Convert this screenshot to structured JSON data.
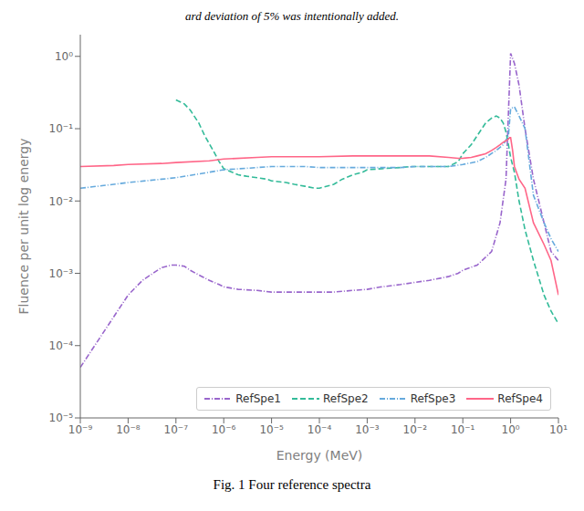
{
  "chart_data": {
    "type": "line",
    "title": "Fig. 1  Four reference spectra",
    "annotations": [
      "ard deviation of 5% was intentionally added."
    ],
    "x_label": "Energy (MeV)",
    "y_label": "Fluence per unit log energy",
    "log": true,
    "grid": false,
    "legend": "lower right",
    "xlim": [
      1e-09,
      10
    ],
    "ylim": [
      1e-05,
      1.9952623149688795
    ],
    "xticks": [
      {
        "value": 1e-09,
        "label": "10⁻⁹"
      },
      {
        "value": 1e-08,
        "label": "10⁻⁸"
      },
      {
        "value": 1e-07,
        "label": "10⁻⁷"
      },
      {
        "value": 1e-06,
        "label": "10⁻⁶"
      },
      {
        "value": 1e-05,
        "label": "10⁻⁵"
      },
      {
        "value": 0.0001,
        "label": "10⁻⁴"
      },
      {
        "value": 0.001,
        "label": "10⁻³"
      },
      {
        "value": 0.01,
        "label": "10⁻²"
      },
      {
        "value": 0.1,
        "label": "10⁻¹"
      },
      {
        "value": 1,
        "label": "10⁰"
      },
      {
        "value": 10,
        "label": "10¹"
      }
    ],
    "yticks": [
      {
        "value": 1e-05,
        "label": "10⁻⁵"
      },
      {
        "value": 0.0001,
        "label": "10⁻⁴"
      },
      {
        "value": 0.001,
        "label": "10⁻³"
      },
      {
        "value": 0.01,
        "label": "10⁻²"
      },
      {
        "value": 0.1,
        "label": "10⁻¹"
      },
      {
        "value": 1,
        "label": "10⁰"
      }
    ],
    "series": [
      {
        "name": "RefSpe1",
        "color": "#9966CC",
        "line_style": "dashdot",
        "x": [
          1e-09,
          2e-09,
          5e-09,
          1e-08,
          2e-08,
          5e-08,
          8e-08,
          1e-07,
          1.5e-07,
          2e-07,
          3e-07,
          5e-07,
          8e-07,
          1e-06,
          2e-06,
          5e-06,
          1e-05,
          2e-05,
          5e-05,
          0.0001,
          0.0002,
          0.0005,
          0.001,
          0.002,
          0.005,
          0.01,
          0.02,
          0.05,
          0.08,
          0.1,
          0.2,
          0.4,
          0.6,
          0.8,
          1.0,
          1.2,
          1.5,
          2.0,
          3.0,
          5.0,
          7.0,
          10
        ],
        "values": [
          5e-05,
          0.0001,
          0.00025,
          0.0005,
          0.0008,
          0.0012,
          0.0013,
          0.0013,
          0.00125,
          0.0011,
          0.00095,
          0.0008,
          0.0007,
          0.00065,
          0.0006,
          0.00058,
          0.00055,
          0.00055,
          0.00055,
          0.00055,
          0.00055,
          0.00058,
          0.0006,
          0.00065,
          0.0007,
          0.00075,
          0.0008,
          0.0009,
          0.001,
          0.0011,
          0.0013,
          0.002,
          0.005,
          0.02,
          1.1,
          0.8,
          0.4,
          0.1,
          0.02,
          0.005,
          0.002,
          0.0015
        ]
      },
      {
        "name": "RefSpe2",
        "color": "#33BB99",
        "line_style": "dashed",
        "x": [
          1e-07,
          1.5e-07,
          2e-07,
          3e-07,
          4e-07,
          6e-07,
          8e-07,
          1e-06,
          1.5e-06,
          2e-06,
          3e-06,
          5e-06,
          8e-06,
          1e-05,
          2e-05,
          3e-05,
          5e-05,
          8e-05,
          0.0001,
          0.0002,
          0.0003,
          0.0005,
          0.0008,
          0.001,
          0.002,
          0.005,
          0.008,
          0.01,
          0.02,
          0.05,
          0.08,
          0.1,
          0.15,
          0.2,
          0.3,
          0.4,
          0.5,
          0.6,
          0.7,
          0.8,
          0.9,
          1.0,
          1.2,
          1.5,
          2.0,
          3.0,
          5.0,
          7.0,
          10
        ],
        "values": [
          0.25,
          0.22,
          0.18,
          0.12,
          0.08,
          0.05,
          0.035,
          0.028,
          0.025,
          0.023,
          0.022,
          0.021,
          0.02,
          0.019,
          0.018,
          0.017,
          0.016,
          0.015,
          0.015,
          0.017,
          0.02,
          0.023,
          0.025,
          0.027,
          0.028,
          0.029,
          0.03,
          0.03,
          0.03,
          0.03,
          0.035,
          0.045,
          0.06,
          0.08,
          0.12,
          0.14,
          0.15,
          0.14,
          0.12,
          0.09,
          0.06,
          0.04,
          0.025,
          0.01,
          0.004,
          0.0015,
          0.0005,
          0.0003,
          0.0002
        ]
      },
      {
        "name": "RefSpe3",
        "color": "#66AADD",
        "line_style": "dashdot",
        "x": [
          1e-09,
          5e-09,
          1e-08,
          5e-08,
          1e-07,
          5e-07,
          1e-06,
          5e-06,
          1e-05,
          5e-05,
          0.0001,
          0.0005,
          0.001,
          0.005,
          0.01,
          0.05,
          0.1,
          0.2,
          0.3,
          0.5,
          0.7,
          0.9,
          1.0,
          1.2,
          1.5,
          2.0,
          3.0,
          5.0,
          7.0,
          10
        ],
        "values": [
          0.015,
          0.017,
          0.018,
          0.02,
          0.021,
          0.025,
          0.027,
          0.029,
          0.03,
          0.03,
          0.029,
          0.029,
          0.029,
          0.029,
          0.03,
          0.03,
          0.032,
          0.035,
          0.04,
          0.05,
          0.06,
          0.08,
          0.19,
          0.2,
          0.15,
          0.1,
          0.012,
          0.005,
          0.003,
          0.002
        ]
      },
      {
        "name": "RefSpe4",
        "color": "#FF6688",
        "line_style": "solid",
        "x": [
          1e-09,
          5e-09,
          1e-08,
          5e-08,
          1e-07,
          5e-07,
          1e-06,
          5e-06,
          1e-05,
          5e-05,
          0.0001,
          0.0005,
          0.001,
          0.005,
          0.01,
          0.02,
          0.05,
          0.08,
          0.1,
          0.15,
          0.2,
          0.3,
          0.4,
          0.5,
          0.6,
          0.7,
          0.8,
          0.9,
          0.95,
          1.0,
          1.1,
          1.2,
          1.5,
          2.0,
          3.0,
          5.0,
          7.0,
          10
        ],
        "values": [
          0.03,
          0.031,
          0.032,
          0.033,
          0.034,
          0.036,
          0.038,
          0.04,
          0.041,
          0.041,
          0.041,
          0.042,
          0.042,
          0.042,
          0.042,
          0.042,
          0.04,
          0.039,
          0.039,
          0.04,
          0.042,
          0.045,
          0.05,
          0.055,
          0.06,
          0.065,
          0.068,
          0.072,
          0.075,
          0.075,
          0.05,
          0.03,
          0.02,
          0.015,
          0.005,
          0.0025,
          0.0015,
          0.0005
        ]
      }
    ]
  }
}
